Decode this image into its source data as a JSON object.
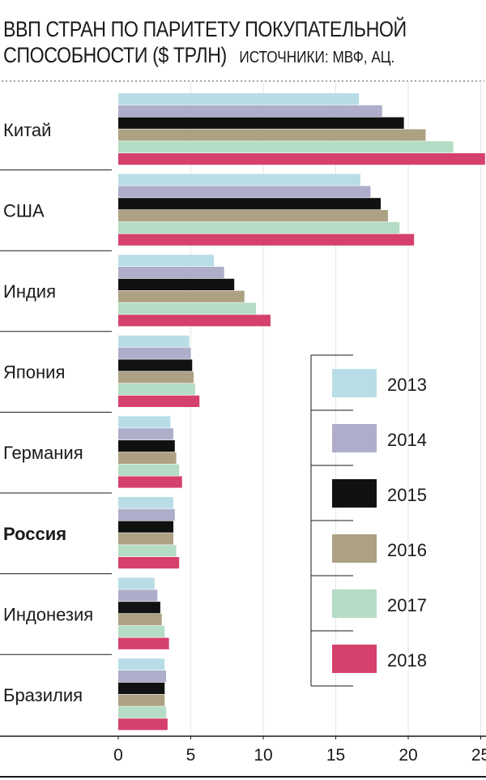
{
  "header": {
    "title_line1": "ВВП СТРАН ПО ПАРИТЕТУ ПОКУПАТЕЛЬНОЙ",
    "title_line2": "СПОСОБНОСТИ ($ ТРЛН)",
    "source": "ИСТОЧНИКИ: МВФ, АЦ."
  },
  "colors": {
    "2013": "#b9dde6",
    "2014": "#aeaecb",
    "2015": "#111111",
    "2016": "#ada183",
    "2017": "#b5dcc5",
    "2018": "#d5416c"
  },
  "chart_data": {
    "type": "bar",
    "orientation": "horizontal",
    "title": "ВВП СТРАН ПО ПАРИТЕТУ ПОКУПАТЕЛЬНОЙ СПОСОБНОСТИ ($ ТРЛН)",
    "categories": [
      "Китай",
      "США",
      "Индия",
      "Япония",
      "Германия",
      "Россия",
      "Индонезия",
      "Бразилия"
    ],
    "highlighted_category": "Россия",
    "xlim": [
      0,
      25
    ],
    "xticks": [
      "0",
      "5",
      "10",
      "15",
      "20",
      "25"
    ],
    "legend_position": "right",
    "series": [
      {
        "name": "2013",
        "values": [
          16.6,
          16.7,
          6.6,
          4.9,
          3.6,
          3.8,
          2.5,
          3.2
        ]
      },
      {
        "name": "2014",
        "values": [
          18.2,
          17.4,
          7.3,
          5.0,
          3.8,
          3.9,
          2.7,
          3.3
        ]
      },
      {
        "name": "2015",
        "values": [
          19.7,
          18.1,
          8.0,
          5.1,
          3.9,
          3.8,
          2.9,
          3.2
        ]
      },
      {
        "name": "2016",
        "values": [
          21.2,
          18.6,
          8.7,
          5.2,
          4.0,
          3.8,
          3.0,
          3.2
        ]
      },
      {
        "name": "2017",
        "values": [
          23.1,
          19.4,
          9.5,
          5.3,
          4.2,
          4.0,
          3.2,
          3.3
        ]
      },
      {
        "name": "2018",
        "values": [
          25.3,
          20.4,
          10.5,
          5.6,
          4.4,
          4.2,
          3.5,
          3.4
        ]
      }
    ]
  }
}
